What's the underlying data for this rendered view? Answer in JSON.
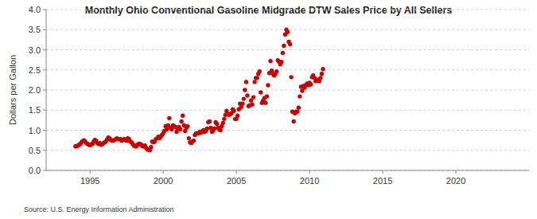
{
  "chart_data": {
    "type": "scatter",
    "title": "Monthly Ohio Conventional Gasoline Midgrade DTW Sales Price by All Sellers",
    "y_label": "Dollars per Gallon",
    "source": "Source: U.S. Energy Information Administration",
    "color": "#cc0000",
    "marker": "circle",
    "grid": true,
    "xlim": [
      1992,
      2025
    ],
    "xticks": [
      1995,
      2000,
      2005,
      2010,
      2015,
      2020
    ],
    "ylim": [
      0,
      4
    ],
    "yticks": [
      {
        "value": 0,
        "label": "0.0"
      },
      0.5,
      {
        "value": 1,
        "label": "1.0"
      },
      1.5,
      {
        "value": 2,
        "label": "2.0"
      },
      2.5,
      {
        "value": 3,
        "label": "3.0"
      },
      3.5,
      {
        "value": 4,
        "label": "4.0"
      }
    ],
    "x": [
      1994.0,
      1994.083,
      1994.167,
      1994.25,
      1994.333,
      1994.417,
      1994.5,
      1994.583,
      1994.667,
      1994.75,
      1994.833,
      1994.917,
      1995.0,
      1995.083,
      1995.167,
      1995.25,
      1995.333,
      1995.417,
      1995.5,
      1995.583,
      1995.667,
      1995.75,
      1995.833,
      1995.917,
      1996.0,
      1996.083,
      1996.167,
      1996.25,
      1996.333,
      1996.417,
      1996.5,
      1996.583,
      1996.667,
      1996.75,
      1996.833,
      1996.917,
      1997.0,
      1997.083,
      1997.167,
      1997.25,
      1997.333,
      1997.417,
      1997.5,
      1997.583,
      1997.667,
      1997.75,
      1997.833,
      1997.917,
      1998.0,
      1998.083,
      1998.167,
      1998.25,
      1998.333,
      1998.417,
      1998.5,
      1998.583,
      1998.667,
      1998.75,
      1998.833,
      1998.917,
      1999.0,
      1999.083,
      1999.167,
      1999.25,
      1999.333,
      1999.417,
      1999.5,
      1999.583,
      1999.667,
      1999.75,
      1999.833,
      1999.917,
      2000.0,
      2000.083,
      2000.167,
      2000.25,
      2000.333,
      2000.417,
      2000.5,
      2000.583,
      2000.667,
      2000.75,
      2000.833,
      2000.917,
      2001.0,
      2001.083,
      2001.167,
      2001.25,
      2001.333,
      2001.417,
      2001.5,
      2001.583,
      2001.667,
      2001.75,
      2001.833,
      2001.917,
      2002.0,
      2002.083,
      2002.167,
      2002.25,
      2002.333,
      2002.417,
      2002.5,
      2002.583,
      2002.667,
      2002.75,
      2002.833,
      2002.917,
      2003.0,
      2003.083,
      2003.167,
      2003.25,
      2003.333,
      2003.417,
      2003.5,
      2003.583,
      2003.667,
      2003.75,
      2003.833,
      2003.917,
      2004.0,
      2004.083,
      2004.167,
      2004.25,
      2004.333,
      2004.417,
      2004.5,
      2004.583,
      2004.667,
      2004.75,
      2004.833,
      2004.917,
      2005.0,
      2005.083,
      2005.167,
      2005.25,
      2005.333,
      2005.417,
      2005.5,
      2005.583,
      2005.667,
      2005.75,
      2005.833,
      2005.917,
      2006.0,
      2006.083,
      2006.167,
      2006.25,
      2006.333,
      2006.417,
      2006.5,
      2006.583,
      2006.667,
      2006.75,
      2006.833,
      2006.917,
      2007.0,
      2007.083,
      2007.167,
      2007.25,
      2007.333,
      2007.417,
      2007.5,
      2007.583,
      2007.667,
      2007.75,
      2007.833,
      2007.917,
      2008.0,
      2008.083,
      2008.167,
      2008.25,
      2008.333,
      2008.417,
      2008.5,
      2008.583,
      2008.667,
      2008.75,
      2008.833,
      2008.917,
      2009.0,
      2009.083,
      2009.167,
      2009.25,
      2009.333,
      2009.417,
      2009.5,
      2009.583,
      2009.667,
      2009.75,
      2009.833,
      2009.917,
      2010.0,
      2010.083,
      2010.167,
      2010.25,
      2010.333,
      2010.417,
      2010.5,
      2010.583,
      2010.667,
      2010.75,
      2010.833,
      2010.917
    ],
    "values": [
      0.6,
      0.6,
      0.62,
      0.64,
      0.66,
      0.7,
      0.73,
      0.75,
      0.72,
      0.68,
      0.66,
      0.64,
      0.63,
      0.65,
      0.66,
      0.72,
      0.76,
      0.74,
      0.68,
      0.66,
      0.68,
      0.64,
      0.65,
      0.68,
      0.7,
      0.72,
      0.77,
      0.82,
      0.8,
      0.76,
      0.74,
      0.74,
      0.76,
      0.77,
      0.8,
      0.78,
      0.77,
      0.78,
      0.74,
      0.76,
      0.78,
      0.76,
      0.74,
      0.8,
      0.78,
      0.72,
      0.7,
      0.66,
      0.62,
      0.6,
      0.6,
      0.64,
      0.66,
      0.66,
      0.64,
      0.6,
      0.6,
      0.62,
      0.56,
      0.52,
      0.52,
      0.5,
      0.58,
      0.72,
      0.7,
      0.72,
      0.78,
      0.8,
      0.84,
      0.8,
      0.84,
      0.88,
      0.92,
      0.98,
      1.1,
      1.02,
      1.12,
      1.3,
      1.06,
      1.02,
      1.12,
      1.1,
      1.08,
      0.96,
      1.04,
      1.08,
      1.02,
      1.22,
      1.36,
      1.12,
      0.98,
      1.06,
      1.1,
      0.8,
      0.7,
      0.68,
      0.72,
      0.74,
      0.88,
      0.92,
      0.92,
      0.92,
      0.96,
      0.94,
      0.96,
      1.0,
      0.96,
      0.98,
      1.04,
      1.2,
      1.22,
      1.06,
      0.96,
      1.0,
      1.04,
      1.2,
      1.16,
      1.06,
      1.02,
      1.0,
      1.1,
      1.18,
      1.28,
      1.38,
      1.48,
      1.4,
      1.38,
      1.4,
      1.42,
      1.52,
      1.48,
      1.28,
      1.28,
      1.36,
      1.52,
      1.66,
      1.58,
      1.66,
      1.78,
      2.0,
      2.2,
      1.86,
      1.6,
      1.62,
      1.74,
      1.64,
      1.82,
      2.2,
      2.3,
      2.3,
      2.4,
      2.46,
      1.94,
      1.68,
      1.74,
      1.8,
      1.68,
      1.84,
      2.12,
      2.42,
      2.72,
      2.48,
      2.4,
      2.36,
      2.4,
      2.46,
      2.74,
      2.7,
      2.64,
      2.7,
      2.92,
      3.1,
      3.38,
      3.5,
      3.44,
      3.2,
      3.14,
      2.32,
      1.46,
      1.22,
      1.42,
      1.46,
      1.46,
      1.56,
      1.84,
      2.08,
      1.98,
      2.1,
      2.06,
      2.12,
      2.16,
      2.12,
      2.18,
      2.14,
      2.32,
      2.36,
      2.3,
      2.22,
      2.26,
      2.24,
      2.22,
      2.3,
      2.4,
      2.52
    ]
  }
}
